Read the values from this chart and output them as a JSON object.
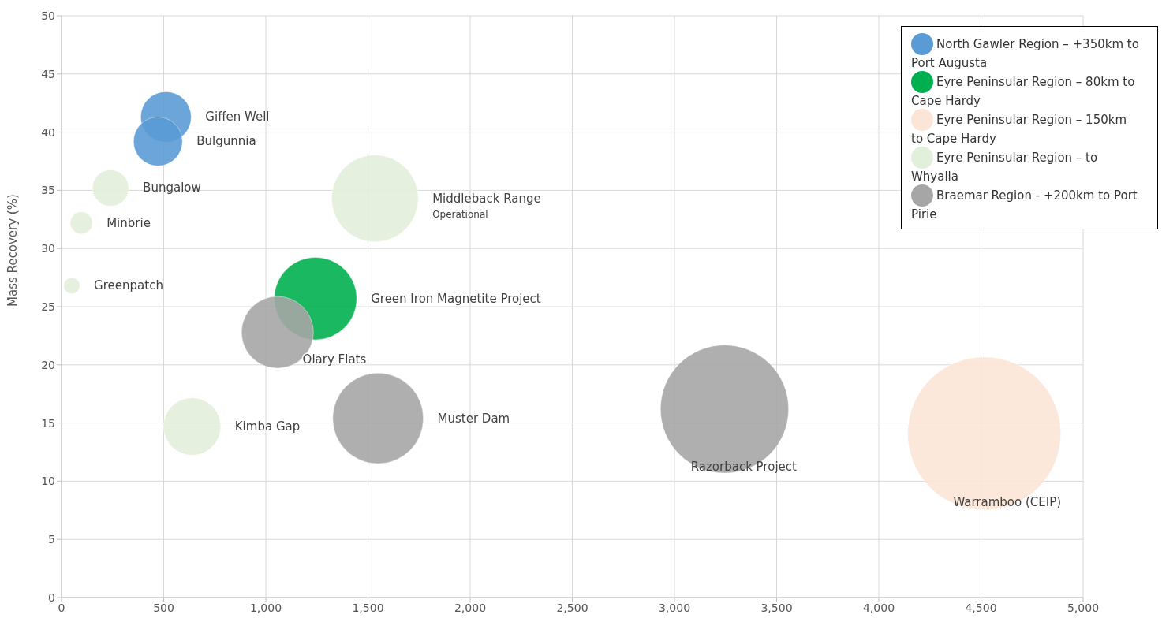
{
  "chart_data": {
    "type": "bubble",
    "ylabel": "Mass Recovery (%)",
    "xlim": [
      0,
      5000
    ],
    "xticks": [
      {
        "value": 0,
        "label": "0"
      },
      {
        "value": 500,
        "label": "500"
      },
      {
        "value": 1000,
        "label": "1,000"
      },
      {
        "value": 1500,
        "label": "1,500"
      },
      {
        "value": 2000,
        "label": "2,000"
      },
      {
        "value": 2500,
        "label": "2,500"
      },
      {
        "value": 3000,
        "label": "3,000"
      },
      {
        "value": 3500,
        "label": "3,500"
      },
      {
        "value": 4000,
        "label": "4,000"
      },
      {
        "value": 4500,
        "label": "4,500"
      },
      {
        "value": 5000,
        "label": "5,000"
      }
    ],
    "ylim": [
      0,
      50
    ],
    "yticks": [
      0,
      5,
      10,
      15,
      20,
      25,
      30,
      35,
      40,
      45,
      50
    ],
    "grid": true,
    "legend": "top right",
    "series": [
      {
        "name": "North Gawler Region – +350km to Port Augusta",
        "color": "#5b9bd5",
        "x": [
          511,
          472
        ],
        "values": [
          41.3,
          39.2
        ],
        "sizes": [
          0.109,
          0.102
        ]
      },
      {
        "name": "Eyre Peninsular Region – 80km to Cape Hardy",
        "color": "#00b050",
        "x": [
          1243
        ],
        "values": [
          25.7
        ],
        "sizes": [
          0.29
        ]
      },
      {
        "name": "Eyre Peninsular Region – 150km to Cape Hardy",
        "color": "#fbe5d6",
        "x": [
          4516
        ],
        "values": [
          14.1
        ],
        "sizes": [
          1
        ]
      },
      {
        "name": "Eyre Peninsular Region – to Whyalla",
        "color": "#e2efda",
        "x": [
          240,
          97,
          50,
          1534,
          639
        ],
        "values": [
          35.2,
          32.2,
          26.8,
          34.3,
          14.7
        ],
        "sizes": [
          0.056,
          0.021,
          0.011,
          0.32,
          0.14
        ]
      },
      {
        "name": "Braemar Region - +200km to Port Pirie",
        "color": "#a6a6a6",
        "x": [
          1057,
          1549,
          3245
        ],
        "values": [
          22.8,
          15.4,
          16.2
        ],
        "sizes": [
          0.22,
          0.35,
          0.7
        ]
      }
    ],
    "annotations": [
      "Giffen Well",
      "Bulgunnia",
      "Bungalow",
      "Minbrie",
      "Greenpatch",
      "Middleback Range",
      "Operational",
      "Green Iron Magnetite Project",
      "Olary Flats",
      "Kimba Gap",
      "Muster Dam",
      "Razorback Project",
      "Warramboo (CEIP)"
    ]
  }
}
